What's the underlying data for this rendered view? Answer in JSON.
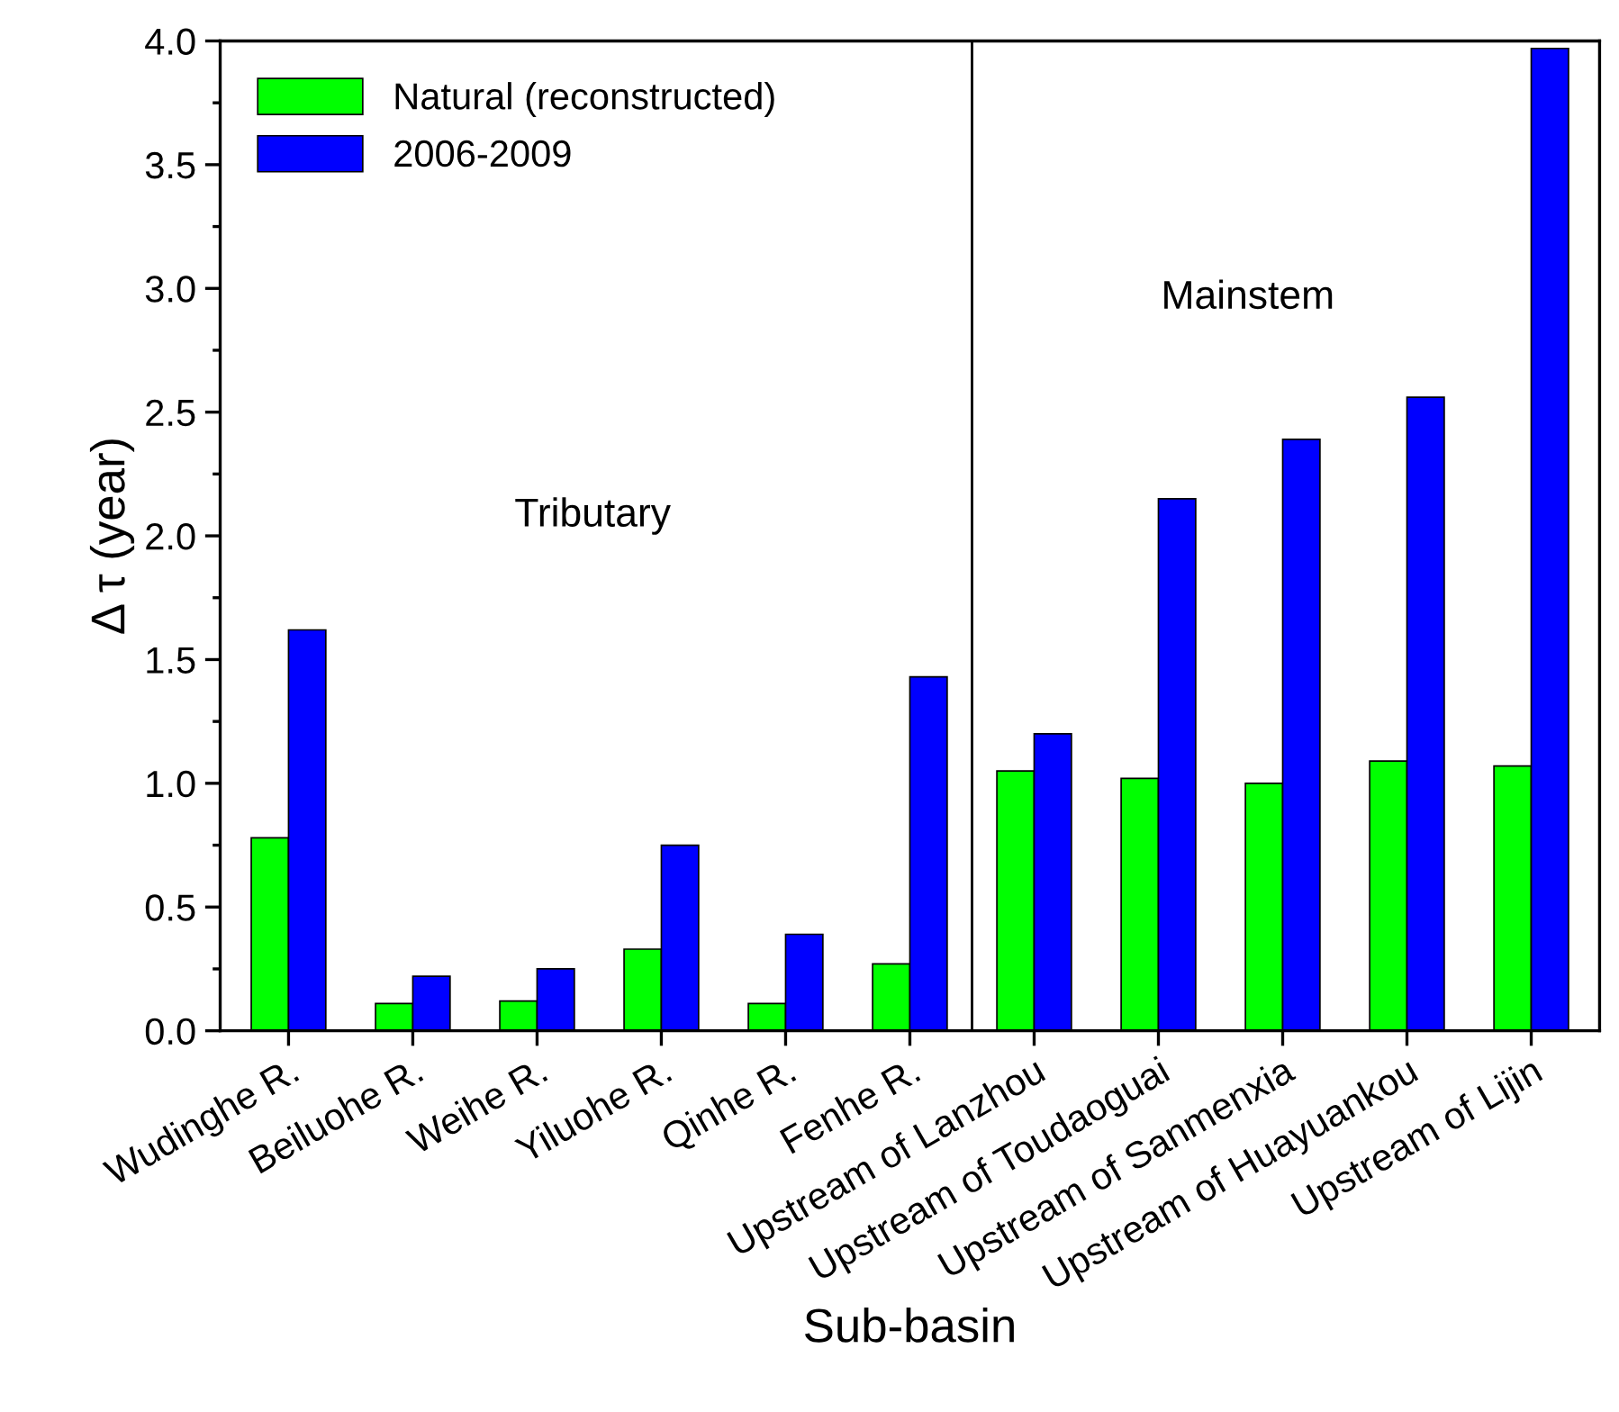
{
  "chart_data": {
    "type": "bar",
    "xlabel": "Sub-basin",
    "ylabel": "Δ τ (year)",
    "categories": [
      "Wudinghe R.",
      "Beiluohe R.",
      "Weihe R.",
      "Yiluohe R.",
      "Qinhe R.",
      "Fenhe R.",
      "Upstream of Lanzhou",
      "Upstream of Toudaoguai",
      "Upstream of Sanmenxia",
      "Upstream of Huayuankou",
      "Upstream of Lijin"
    ],
    "series": [
      {
        "name": "Natural (reconstructed)",
        "color": "#00ff00",
        "values": [
          0.78,
          0.11,
          0.12,
          0.33,
          0.11,
          0.27,
          1.05,
          1.02,
          1.0,
          1.09,
          1.07
        ]
      },
      {
        "name": "2006-2009",
        "color": "#0000ff",
        "values": [
          1.62,
          0.22,
          0.25,
          0.75,
          0.39,
          1.43,
          1.2,
          2.15,
          2.39,
          2.56,
          3.97
        ]
      }
    ],
    "ylim": [
      0,
      4.0
    ],
    "yticks": [
      {
        "value": 0,
        "label": "0.0"
      },
      0.5,
      {
        "value": 1,
        "label": "1.0"
      },
      1.5,
      {
        "value": 2,
        "label": "2.0"
      },
      2.5,
      {
        "value": 3,
        "label": "3.0"
      },
      3.5,
      {
        "value": 4,
        "label": "4.0"
      }
    ],
    "annotations": [
      "Tributary",
      "Mainstem"
    ],
    "legend": "top left",
    "grid": false
  }
}
